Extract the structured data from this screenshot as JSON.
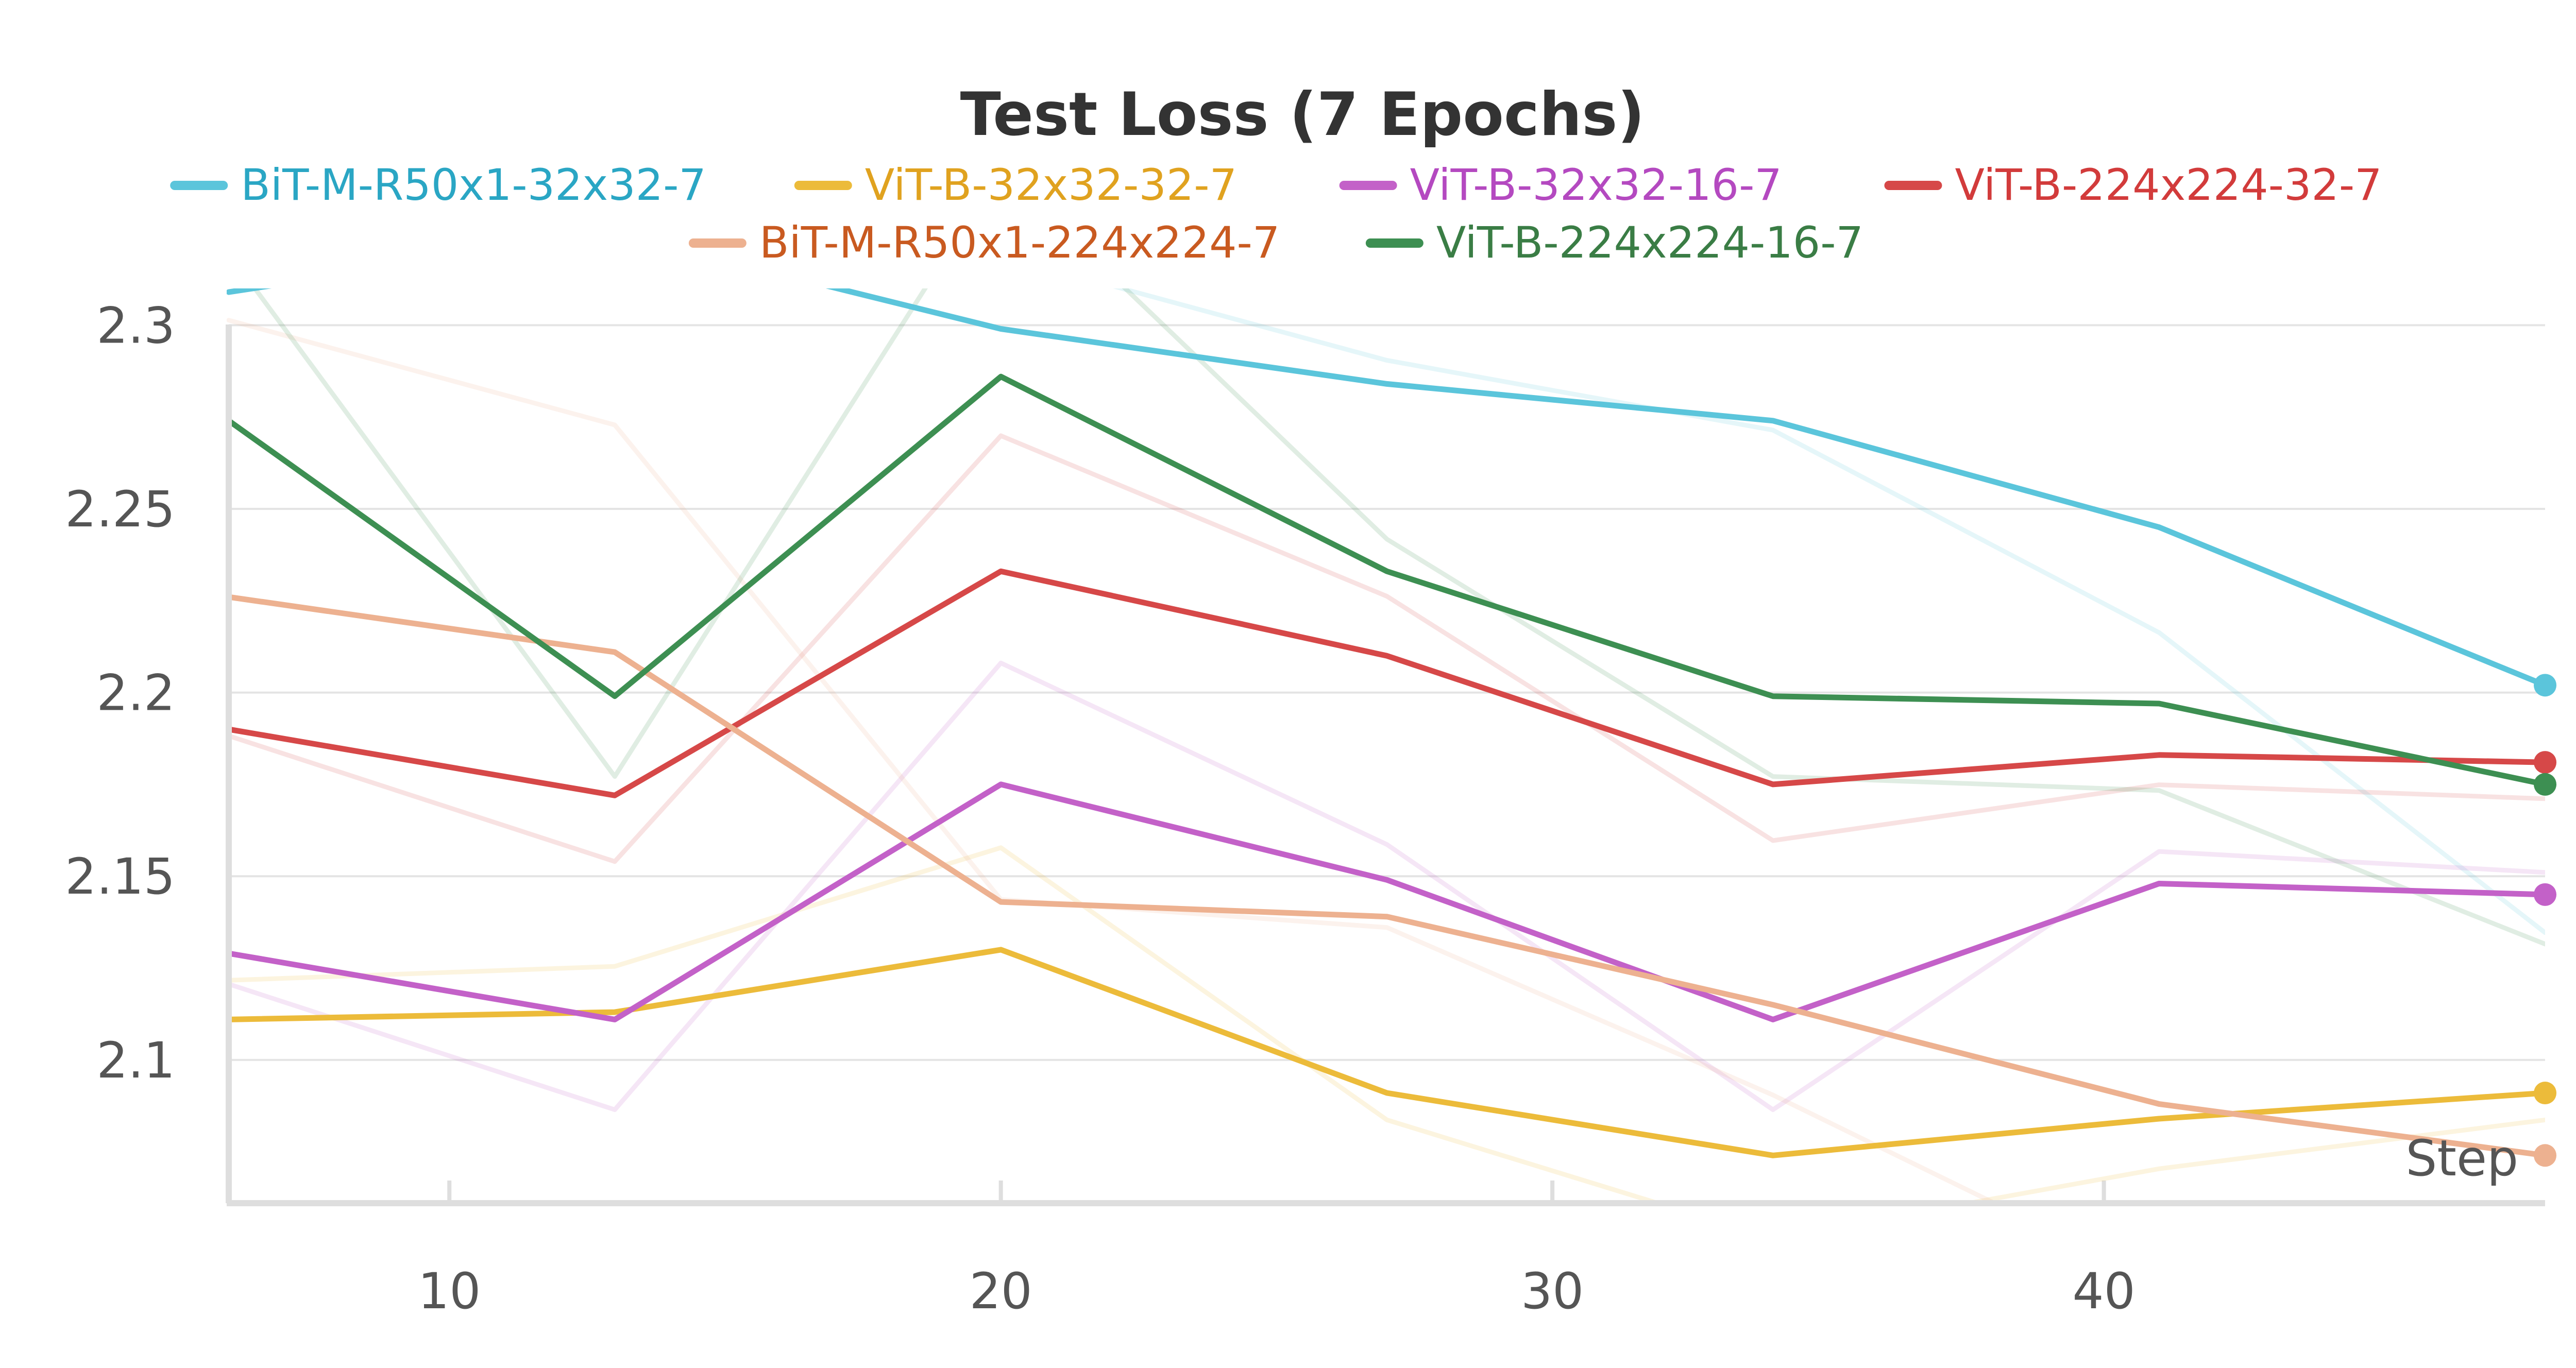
{
  "chart_data": {
    "type": "line",
    "title": "Test Loss (7 Epochs)",
    "xlabel": "Step",
    "ylabel": "",
    "xlim": [
      6,
      48
    ],
    "ylim": [
      2.061,
      2.31
    ],
    "xticks": [
      10,
      20,
      30,
      40
    ],
    "yticks": [
      2.1,
      2.15,
      2.2,
      2.25,
      2.3
    ],
    "ytick_labels": [
      "2.1",
      "2.15",
      "2.2",
      "2.25",
      "2.3"
    ],
    "grid": true,
    "legend_position": "top-center",
    "x": [
      6,
      13,
      20,
      27,
      34,
      41,
      48
    ],
    "series": [
      {
        "name": "BiT-M-R50x1-32x32-7",
        "color": "#5bc5db",
        "text_color": "#2aa6c4",
        "values": [
          2.309,
          2.325,
          2.299,
          2.284,
          2.274,
          2.245,
          2.202
        ]
      },
      {
        "name": "ViT-B-32x32-32-7",
        "color": "#ecbb3a",
        "text_color": "#e0a21f",
        "values": [
          2.111,
          2.113,
          2.13,
          2.091,
          2.074,
          2.084,
          2.091
        ]
      },
      {
        "name": "ViT-B-32x32-16-7",
        "color": "#c361c8",
        "text_color": "#b449c0",
        "values": [
          2.129,
          2.111,
          2.175,
          2.149,
          2.111,
          2.148,
          2.145
        ]
      },
      {
        "name": "ViT-B-224x224-32-7",
        "color": "#d64848",
        "text_color": "#d23b3b",
        "values": [
          2.19,
          2.172,
          2.233,
          2.21,
          2.175,
          2.183,
          2.181
        ]
      },
      {
        "name": "BiT-M-R50x1-224x224-7",
        "color": "#edb190",
        "text_color": "#c95a20",
        "values": [
          2.226,
          2.211,
          2.143,
          2.139,
          2.115,
          2.088,
          2.074
        ]
      },
      {
        "name": "ViT-B-224x224-16-7",
        "color": "#3d8f52",
        "text_color": "#3a7d45",
        "values": [
          2.274,
          2.199,
          2.286,
          2.233,
          2.199,
          2.197,
          2.175
        ]
      }
    ]
  }
}
